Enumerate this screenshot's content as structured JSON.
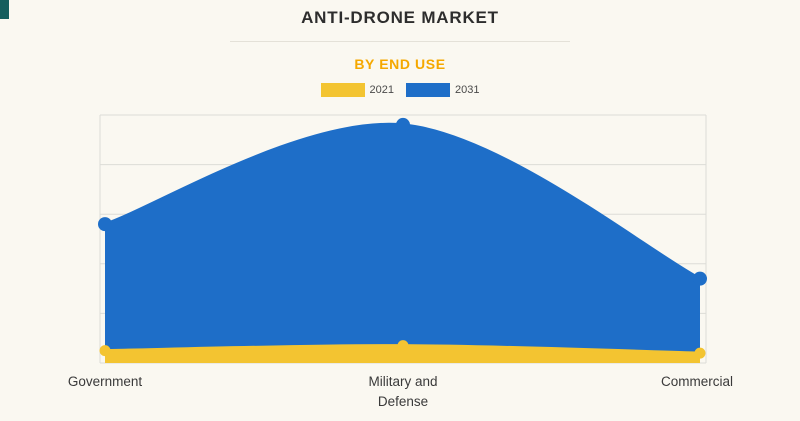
{
  "theme": {
    "background": "#FAF8F1",
    "corner_accent": "#155E5E",
    "title_color": "#2D2D2D",
    "subtitle_color": "#F5A800",
    "grid_color": "#DCDCD7",
    "axis_label_color": "#3A3A3A"
  },
  "header": {
    "title": "ANTI-DRONE MARKET",
    "subtitle": "BY END USE"
  },
  "legend": {
    "items": [
      {
        "label": "2021",
        "color": "#F3C431"
      },
      {
        "label": "2031",
        "color": "#1E6EC8"
      }
    ]
  },
  "chart_data": {
    "type": "area",
    "categories": [
      "Government",
      "Military and Defense",
      "Commercial"
    ],
    "series": [
      {
        "name": "2021",
        "color": "#F3C431",
        "values": [
          5,
          7,
          4
        ]
      },
      {
        "name": "2031",
        "color": "#1E6EC8",
        "values": [
          56,
          96,
          34
        ]
      }
    ],
    "title": "ANTI-DRONE MARKET",
    "subtitle": "BY END USE",
    "xlabel": "",
    "ylabel": "",
    "ylim": [
      0,
      100
    ],
    "grid": true,
    "legend_position": "top",
    "y_axis_tick_labels": "none"
  }
}
